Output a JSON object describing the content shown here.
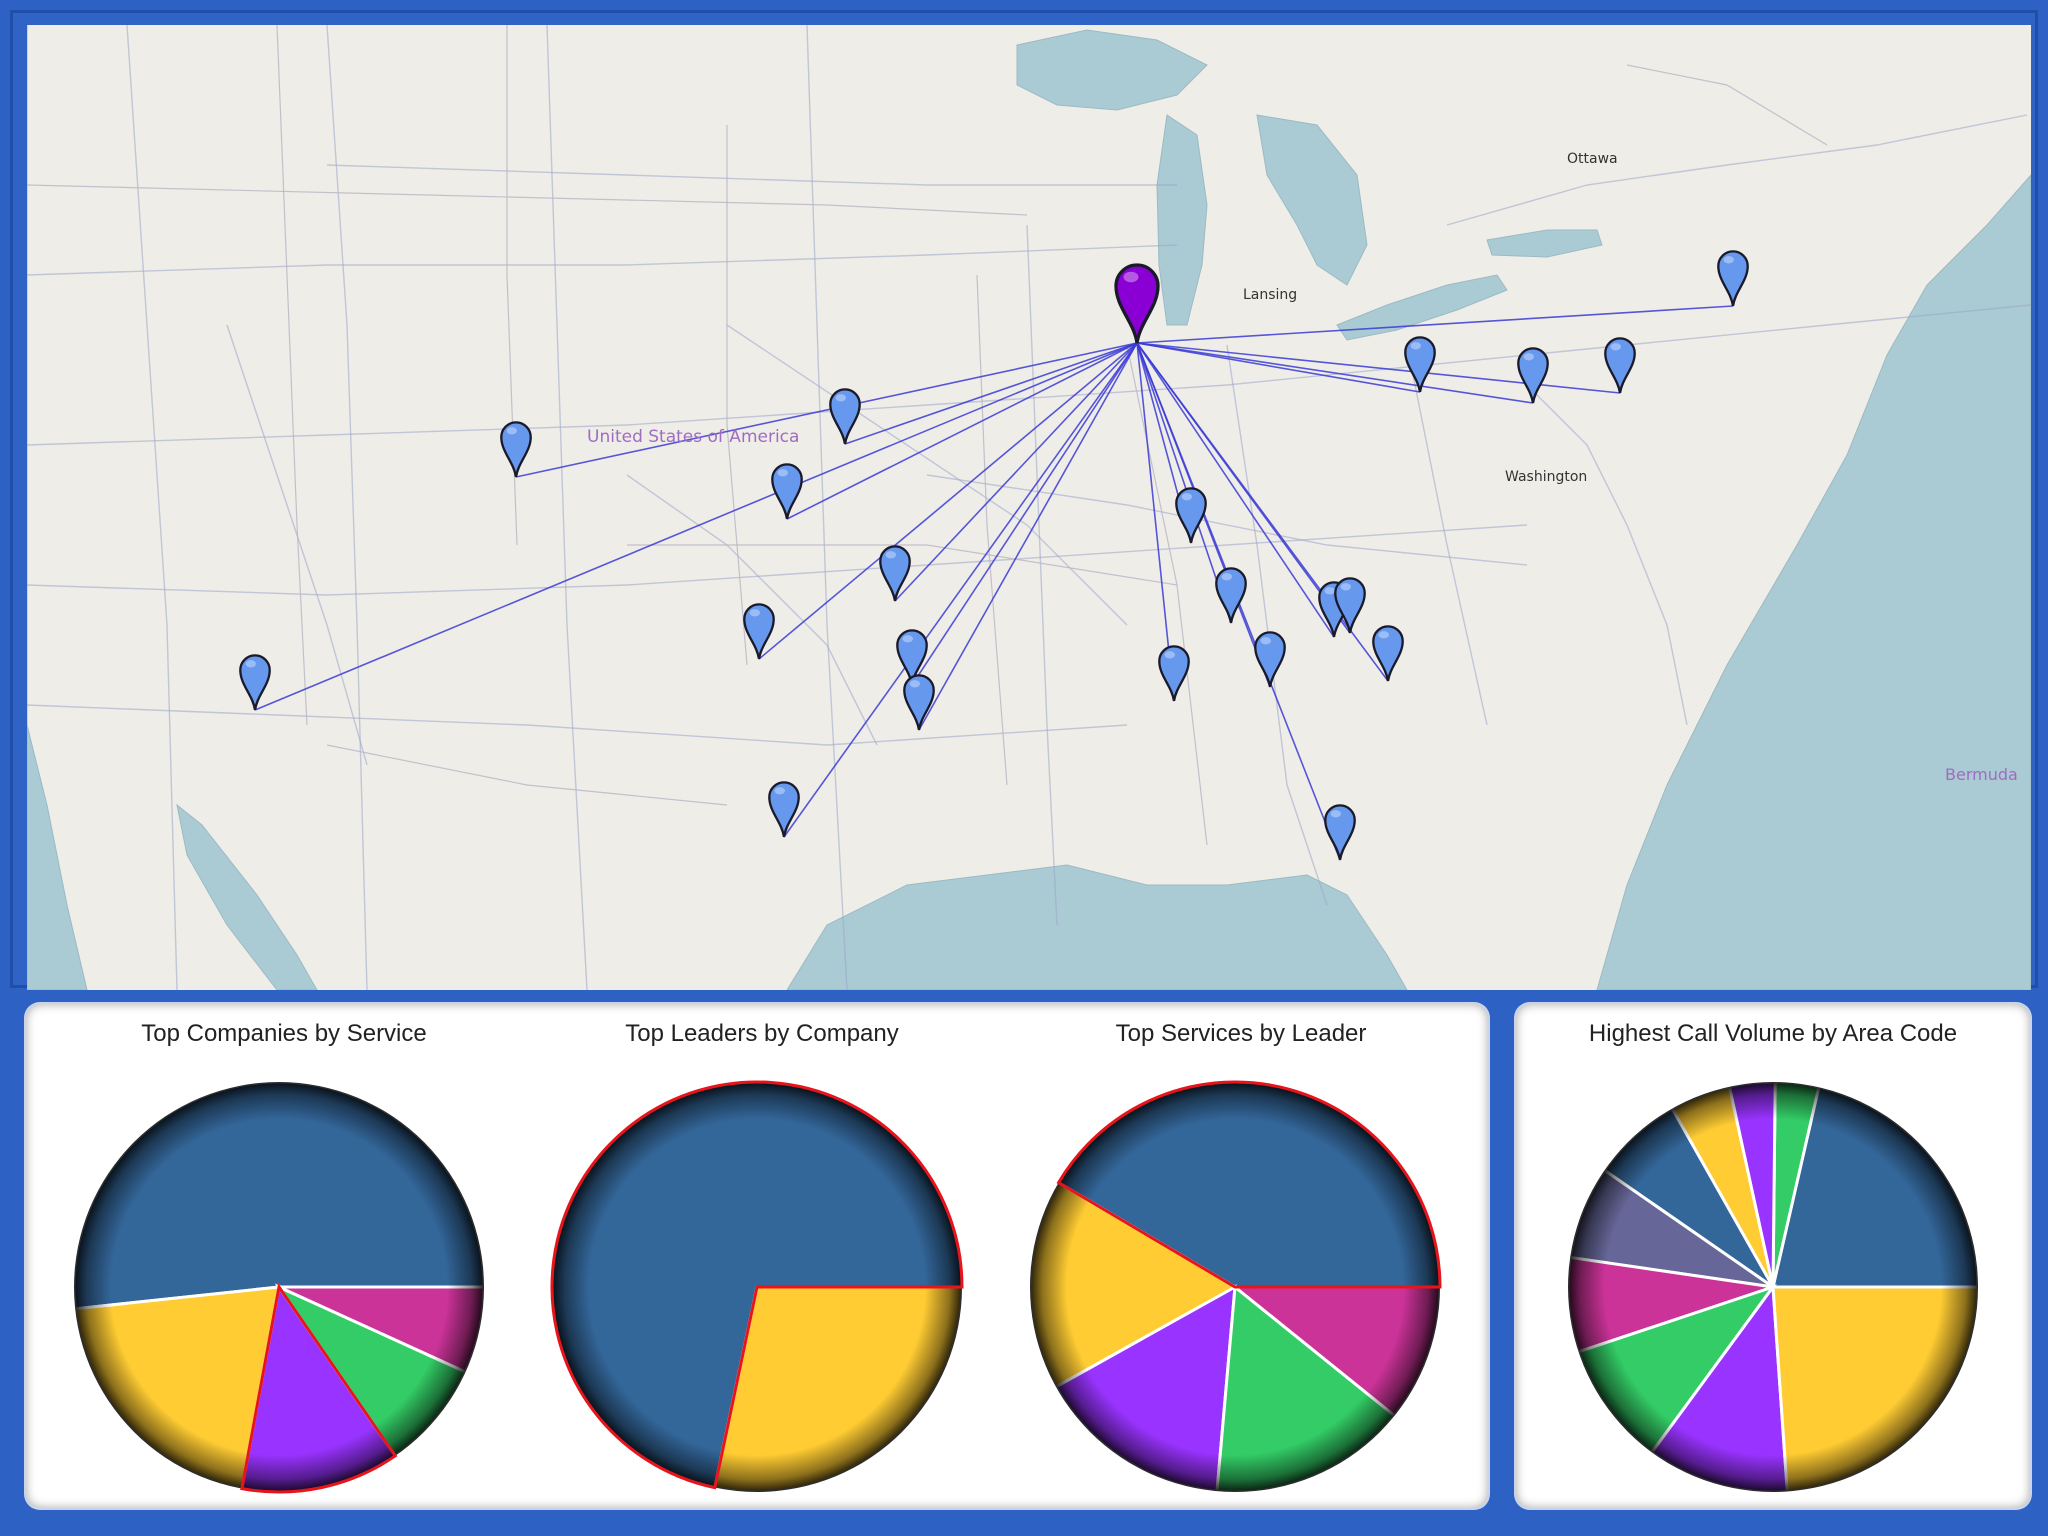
{
  "map": {
    "labels": {
      "ottawa": "Ottawa",
      "lansing": "Lansing",
      "washington": "Washington",
      "country": "United States of America",
      "bermuda": "Bermuda"
    },
    "hub_color": "#8a00d4",
    "pin_color": "#6699ee",
    "line_color": "#3b3bd6",
    "water_color": "#aacbd3",
    "land_color": "#efede8"
  },
  "charts": {
    "companies_by_service": {
      "title": "Top Companies by Service"
    },
    "leaders_by_company": {
      "title": "Top Leaders by Company"
    },
    "services_by_leader": {
      "title": "Top Services by Leader"
    },
    "call_volume_by_area_code": {
      "title": "Highest Call Volume by Area Code"
    }
  },
  "chart_data": [
    {
      "type": "pie",
      "title": "Top Companies by Service",
      "values": [
        51.7,
        20.4,
        12.5,
        8.6,
        6.8
      ],
      "colors": [
        "#336699",
        "#ffcc33",
        "#9933ff",
        "#33cc66",
        "#cc3399"
      ],
      "highlighted_index": 2
    },
    {
      "type": "pie",
      "title": "Top Leaders by Company",
      "values": [
        71.7,
        28.3
      ],
      "colors": [
        "#336699",
        "#ffcc33"
      ],
      "highlighted_index": 0
    },
    {
      "type": "pie",
      "title": "Top Services by Leader",
      "values": [
        41.5,
        16.6,
        15.5,
        15.6,
        10.8
      ],
      "colors": [
        "#336699",
        "#ffcc33",
        "#9933ff",
        "#33cc66",
        "#cc3399"
      ],
      "highlighted_index": 0
    },
    {
      "type": "pie",
      "title": "Highest Call Volume by Area Code",
      "values": [
        25.1,
        4.0,
        4.2,
        5.6,
        8.4,
        8.6,
        8.7,
        11.5,
        13.1,
        28.0
      ],
      "colors": [
        "#336699",
        "#33cc66",
        "#9933ff",
        "#ffcc33",
        "#336699",
        "#666699",
        "#cc3399",
        "#33cc66",
        "#9933ff",
        "#ffcc33"
      ],
      "highlighted_index": -1
    }
  ]
}
